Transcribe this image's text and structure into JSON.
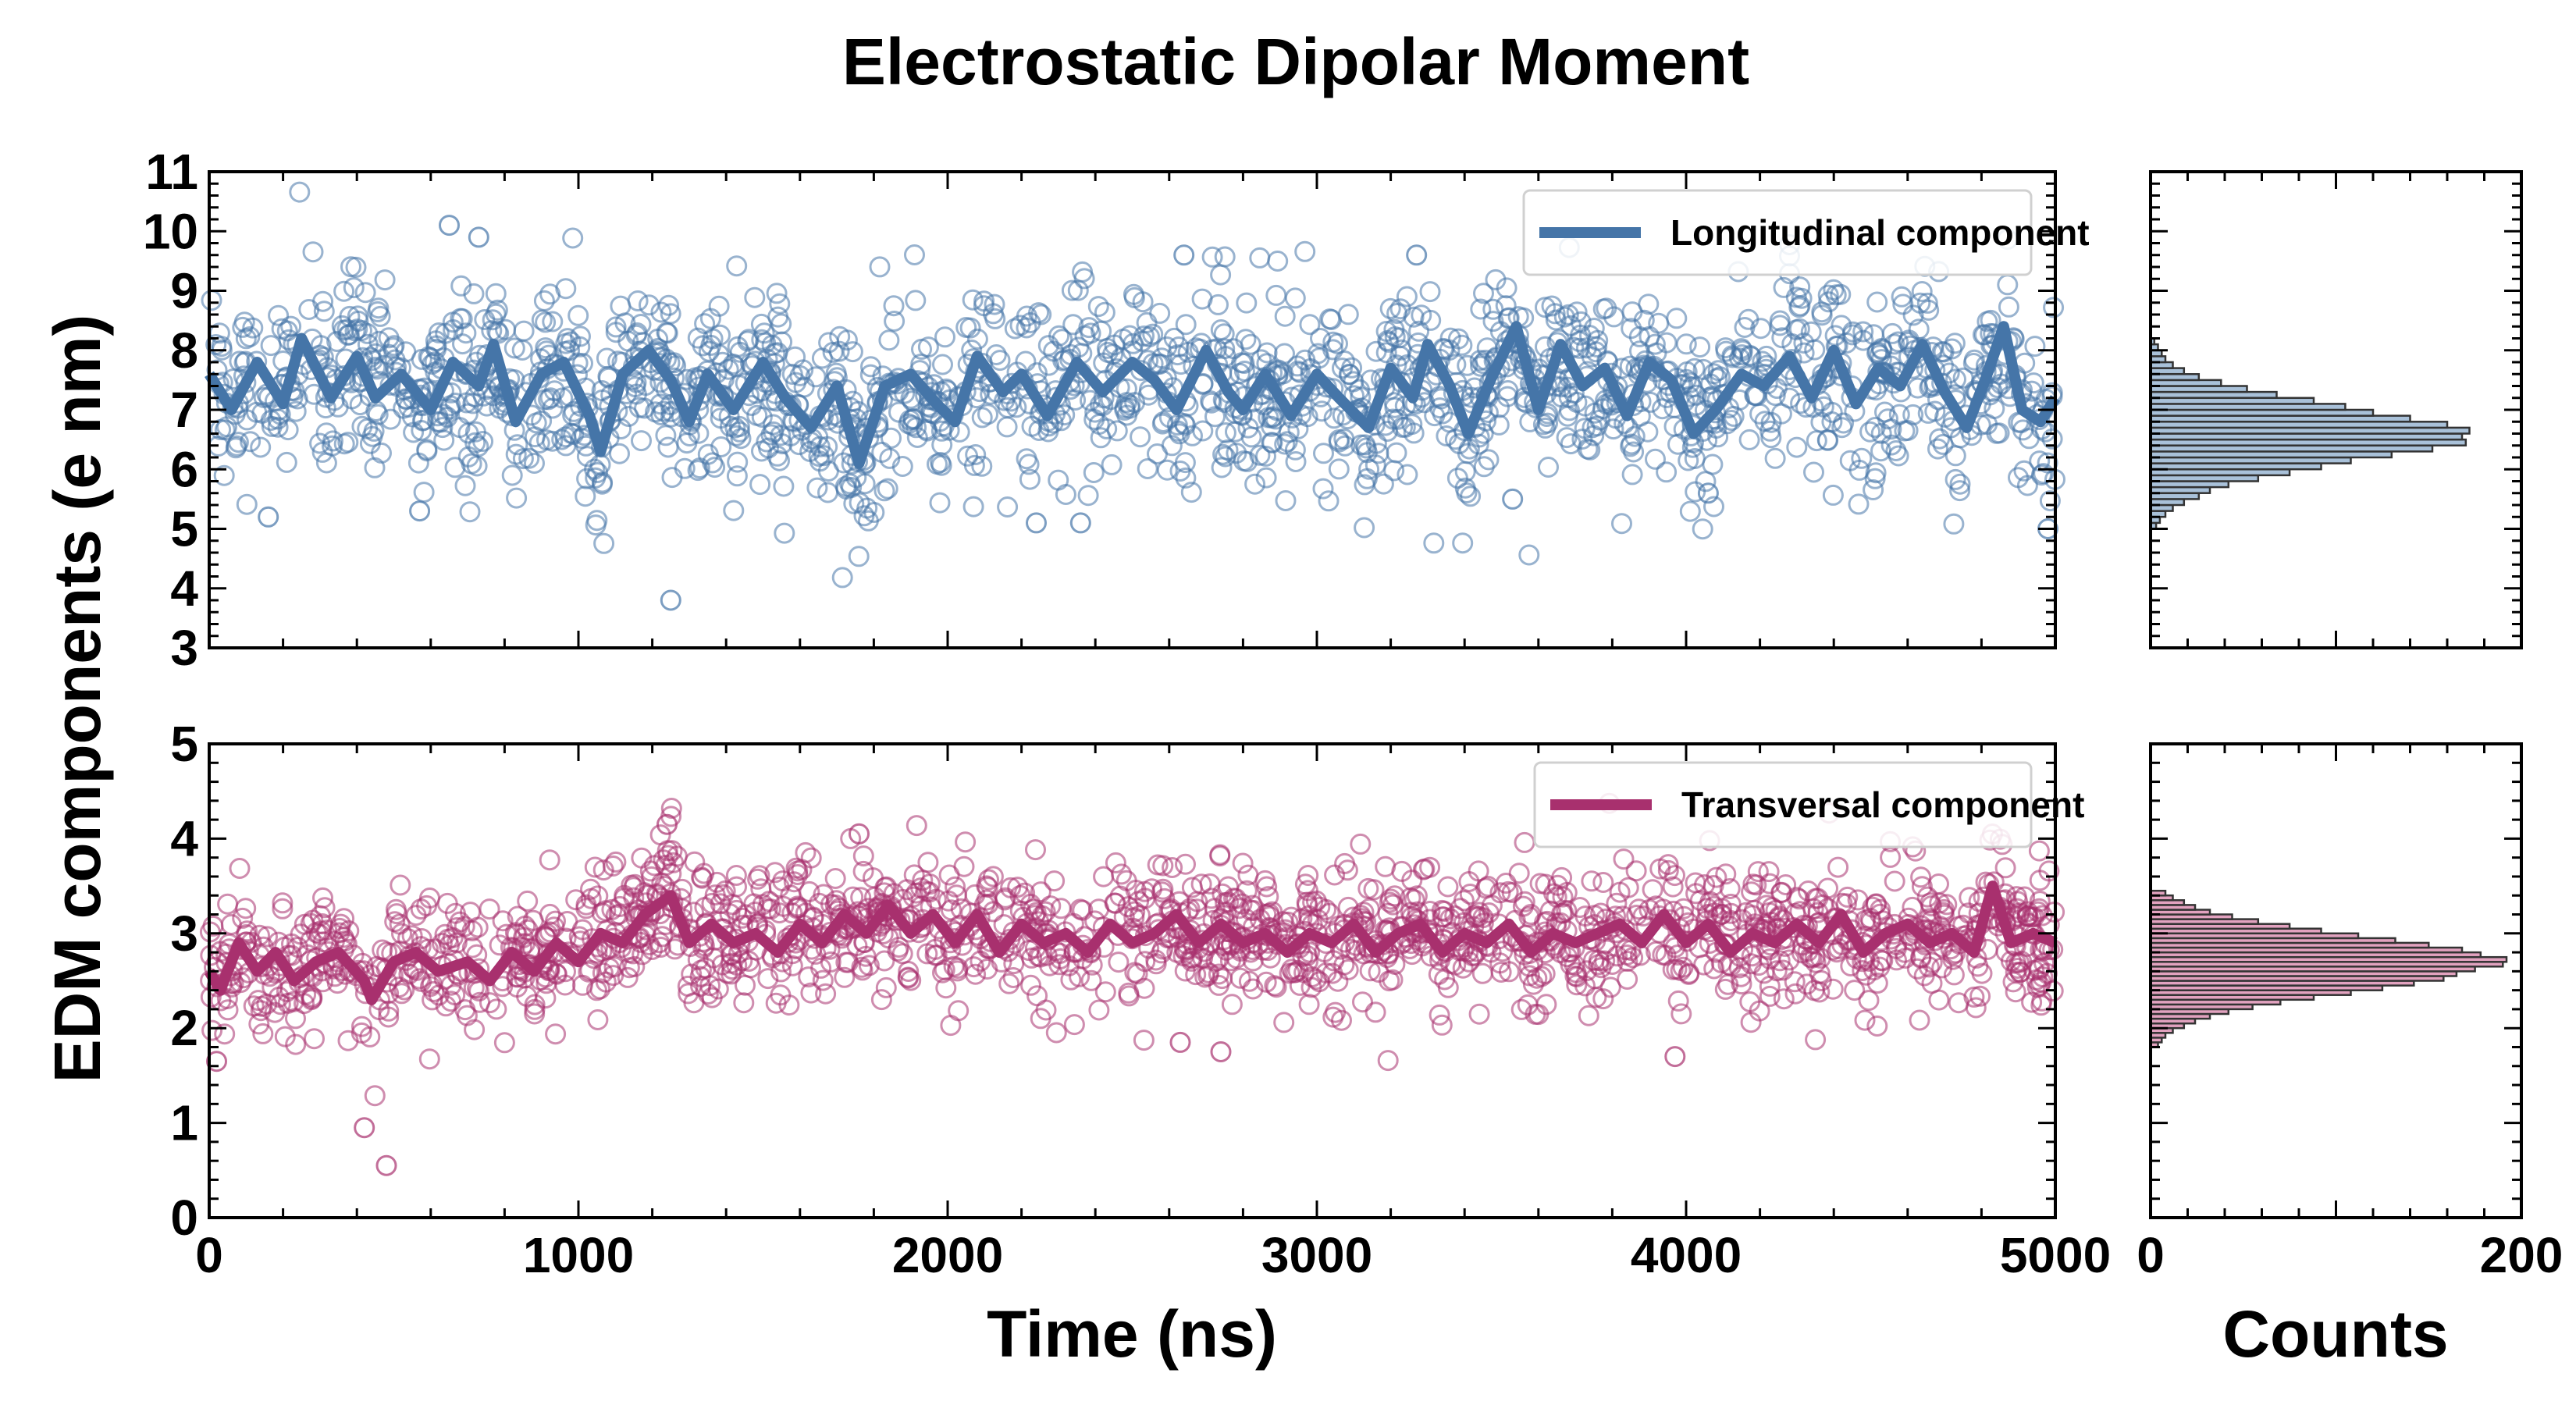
{
  "chart_data": {
    "type": "scatter",
    "title": "Electrostatic Dipolar Moment",
    "xlabel": "Time (ns)",
    "ylabel": "EDM components (e nm)",
    "hist_xlabel": "Counts",
    "colors": {
      "longitudinal": "#4575a8",
      "longitudinal_hist": "#a9c1d9",
      "transversal": "#a8306e",
      "transversal_hist": "#e2a2bf"
    },
    "top_panel": {
      "xlim": [
        0,
        5000
      ],
      "ylim": [
        3,
        11
      ],
      "yticks": [
        "3",
        "4",
        "5",
        "6",
        "7",
        "8",
        "9",
        "10",
        "11"
      ],
      "legend": "Longitudinal component",
      "legend_loc": "upper right",
      "mean": 7.45,
      "scatter_sd": 0.75,
      "moving_average": [
        [
          0,
          7.6
        ],
        [
          60,
          7.0
        ],
        [
          130,
          7.8
        ],
        [
          200,
          7.1
        ],
        [
          250,
          8.2
        ],
        [
          330,
          7.2
        ],
        [
          400,
          7.9
        ],
        [
          450,
          7.2
        ],
        [
          520,
          7.6
        ],
        [
          600,
          7.0
        ],
        [
          660,
          7.8
        ],
        [
          730,
          7.4
        ],
        [
          770,
          8.1
        ],
        [
          830,
          6.8
        ],
        [
          900,
          7.6
        ],
        [
          960,
          7.8
        ],
        [
          1030,
          6.9
        ],
        [
          1060,
          6.3
        ],
        [
          1120,
          7.6
        ],
        [
          1190,
          8.0
        ],
        [
          1250,
          7.5
        ],
        [
          1300,
          6.8
        ],
        [
          1350,
          7.6
        ],
        [
          1420,
          7.0
        ],
        [
          1500,
          7.8
        ],
        [
          1560,
          7.2
        ],
        [
          1630,
          6.7
        ],
        [
          1700,
          7.4
        ],
        [
          1760,
          6.1
        ],
        [
          1830,
          7.4
        ],
        [
          1900,
          7.6
        ],
        [
          1970,
          7.1
        ],
        [
          2020,
          6.8
        ],
        [
          2080,
          7.9
        ],
        [
          2150,
          7.3
        ],
        [
          2200,
          7.6
        ],
        [
          2270,
          6.9
        ],
        [
          2350,
          7.8
        ],
        [
          2420,
          7.3
        ],
        [
          2500,
          7.8
        ],
        [
          2560,
          7.5
        ],
        [
          2620,
          7.0
        ],
        [
          2700,
          8.0
        ],
        [
          2760,
          7.3
        ],
        [
          2800,
          7.0
        ],
        [
          2860,
          7.6
        ],
        [
          2930,
          6.9
        ],
        [
          3000,
          7.6
        ],
        [
          3060,
          7.2
        ],
        [
          3140,
          6.7
        ],
        [
          3200,
          7.7
        ],
        [
          3260,
          7.2
        ],
        [
          3300,
          8.1
        ],
        [
          3360,
          7.4
        ],
        [
          3410,
          6.6
        ],
        [
          3470,
          7.5
        ],
        [
          3540,
          8.4
        ],
        [
          3600,
          7.0
        ],
        [
          3660,
          8.1
        ],
        [
          3720,
          7.4
        ],
        [
          3780,
          7.7
        ],
        [
          3840,
          6.9
        ],
        [
          3900,
          7.8
        ],
        [
          3960,
          7.5
        ],
        [
          4020,
          6.6
        ],
        [
          4080,
          7.0
        ],
        [
          4150,
          7.6
        ],
        [
          4210,
          7.4
        ],
        [
          4280,
          7.9
        ],
        [
          4340,
          7.2
        ],
        [
          4400,
          8.0
        ],
        [
          4460,
          7.1
        ],
        [
          4520,
          7.7
        ],
        [
          4580,
          7.4
        ],
        [
          4640,
          8.1
        ],
        [
          4700,
          7.3
        ],
        [
          4760,
          6.7
        ],
        [
          4810,
          7.5
        ],
        [
          4860,
          8.4
        ],
        [
          4910,
          7.0
        ],
        [
          4960,
          6.8
        ],
        [
          5000,
          7.2
        ]
      ],
      "outliers": [
        [
          1250,
          3.8
        ],
        [
          2240,
          5.1
        ],
        [
          2360,
          5.1
        ],
        [
          570,
          5.3
        ],
        [
          4060,
          5.6
        ],
        [
          3530,
          5.5
        ],
        [
          4980,
          5.0
        ],
        [
          160,
          5.2
        ],
        [
          650,
          10.1
        ],
        [
          730,
          9.9
        ],
        [
          3270,
          9.6
        ],
        [
          2640,
          9.6
        ]
      ]
    },
    "bottom_panel": {
      "xlim": [
        0,
        5000
      ],
      "ylim": [
        0,
        5
      ],
      "yticks": [
        "0",
        "1",
        "2",
        "3",
        "4",
        "5"
      ],
      "legend": "Transversal component",
      "legend_loc": "upper right",
      "mean": 2.95,
      "scatter_sd": 0.35,
      "moving_average": [
        [
          0,
          2.6
        ],
        [
          30,
          2.4
        ],
        [
          80,
          2.9
        ],
        [
          130,
          2.6
        ],
        [
          180,
          2.8
        ],
        [
          230,
          2.5
        ],
        [
          290,
          2.7
        ],
        [
          350,
          2.8
        ],
        [
          420,
          2.5
        ],
        [
          440,
          2.3
        ],
        [
          500,
          2.7
        ],
        [
          560,
          2.8
        ],
        [
          620,
          2.6
        ],
        [
          700,
          2.7
        ],
        [
          760,
          2.5
        ],
        [
          820,
          2.8
        ],
        [
          880,
          2.6
        ],
        [
          940,
          2.9
        ],
        [
          1000,
          2.7
        ],
        [
          1060,
          3.0
        ],
        [
          1120,
          2.9
        ],
        [
          1180,
          3.2
        ],
        [
          1250,
          3.4
        ],
        [
          1300,
          2.9
        ],
        [
          1360,
          3.1
        ],
        [
          1420,
          2.9
        ],
        [
          1480,
          3.0
        ],
        [
          1540,
          2.8
        ],
        [
          1600,
          3.1
        ],
        [
          1660,
          2.9
        ],
        [
          1720,
          3.2
        ],
        [
          1780,
          3.0
        ],
        [
          1840,
          3.3
        ],
        [
          1900,
          3.0
        ],
        [
          1960,
          3.2
        ],
        [
          2020,
          2.9
        ],
        [
          2080,
          3.2
        ],
        [
          2140,
          2.8
        ],
        [
          2200,
          3.1
        ],
        [
          2260,
          2.9
        ],
        [
          2320,
          3.0
        ],
        [
          2380,
          2.8
        ],
        [
          2440,
          3.1
        ],
        [
          2500,
          2.9
        ],
        [
          2560,
          3.0
        ],
        [
          2620,
          3.2
        ],
        [
          2680,
          2.9
        ],
        [
          2740,
          3.1
        ],
        [
          2800,
          2.9
        ],
        [
          2860,
          3.0
        ],
        [
          2920,
          2.8
        ],
        [
          2980,
          3.0
        ],
        [
          3040,
          2.9
        ],
        [
          3100,
          3.1
        ],
        [
          3160,
          2.8
        ],
        [
          3220,
          3.0
        ],
        [
          3280,
          3.1
        ],
        [
          3340,
          2.8
        ],
        [
          3400,
          3.0
        ],
        [
          3460,
          2.9
        ],
        [
          3520,
          3.1
        ],
        [
          3580,
          2.8
        ],
        [
          3640,
          3.0
        ],
        [
          3700,
          2.9
        ],
        [
          3760,
          3.0
        ],
        [
          3820,
          3.1
        ],
        [
          3880,
          2.9
        ],
        [
          3940,
          3.2
        ],
        [
          4000,
          2.9
        ],
        [
          4060,
          3.1
        ],
        [
          4120,
          2.8
        ],
        [
          4180,
          3.0
        ],
        [
          4240,
          2.9
        ],
        [
          4300,
          3.1
        ],
        [
          4360,
          2.9
        ],
        [
          4420,
          3.2
        ],
        [
          4480,
          2.8
        ],
        [
          4540,
          3.0
        ],
        [
          4600,
          3.1
        ],
        [
          4660,
          2.9
        ],
        [
          4720,
          3.0
        ],
        [
          4780,
          2.8
        ],
        [
          4830,
          3.5
        ],
        [
          4880,
          2.9
        ],
        [
          4940,
          3.0
        ],
        [
          5000,
          2.9
        ]
      ],
      "outliers": [
        [
          420,
          0.95
        ],
        [
          480,
          0.55
        ],
        [
          20,
          1.65
        ],
        [
          1240,
          4.15
        ],
        [
          1760,
          4.05
        ],
        [
          3970,
          1.7
        ],
        [
          2740,
          1.75
        ],
        [
          2630,
          1.85
        ]
      ]
    },
    "x_ticks": [
      "0",
      "1000",
      "2000",
      "3000",
      "4000",
      "5000"
    ],
    "hist_x_ticks": [
      "0",
      "200"
    ],
    "hist_xlim": [
      0,
      200
    ],
    "hist_top": {
      "bin_start": 5.0,
      "bin_width": 0.1,
      "counts": [
        3,
        5,
        8,
        12,
        18,
        26,
        32,
        42,
        58,
        75,
        92,
        108,
        130,
        152,
        170,
        168,
        172,
        160,
        140,
        120,
        105,
        88,
        68,
        52,
        38,
        26,
        18,
        12,
        8,
        6,
        4,
        2
      ]
    },
    "hist_bottom": {
      "bin_start": 1.8,
      "bin_width": 0.05,
      "counts": [
        4,
        6,
        8,
        12,
        18,
        24,
        32,
        42,
        55,
        70,
        88,
        108,
        125,
        142,
        158,
        165,
        175,
        190,
        192,
        178,
        168,
        150,
        132,
        112,
        92,
        75,
        58,
        44,
        32,
        24,
        18,
        12,
        8
      ]
    }
  }
}
